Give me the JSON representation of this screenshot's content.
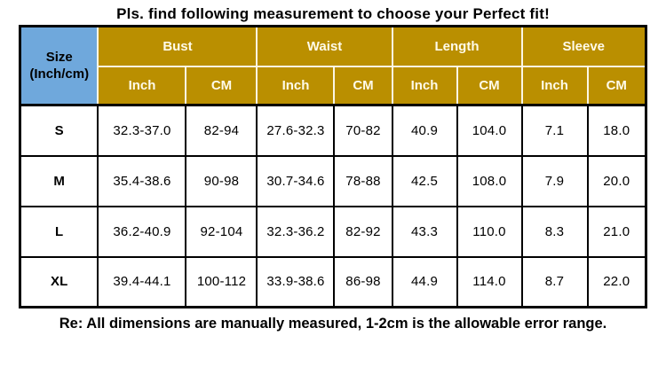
{
  "note": "Re: All dimensions are manually measured, 1-2cm is the allowable error range.",
  "colors": {
    "header_fill": "#BA8F00",
    "header_text": "#FFFBEA",
    "size_fill": "#6FA8DC",
    "body_text": "#000000",
    "grid_border": "#000000",
    "header_separator": "#FCF7E6",
    "background": "#FFFFFF"
  },
  "chart_data": {
    "type": "table",
    "title": "Pls. find following measurement to choose your Perfect fit!",
    "size_header": [
      "Size",
      "(Inch/cm)"
    ],
    "groups": [
      "Bust",
      "Waist",
      "Length",
      "Sleeve"
    ],
    "units": [
      "Inch",
      "CM",
      "Inch",
      "CM",
      "Inch",
      "CM",
      "Inch",
      "CM"
    ],
    "rows": [
      [
        "S",
        "32.3-37.0",
        "82-94",
        "27.6-32.3",
        "70-82",
        "40.9",
        "104.0",
        "7.1",
        "18.0"
      ],
      [
        "M",
        "35.4-38.6",
        "90-98",
        "30.7-34.6",
        "78-88",
        "42.5",
        "108.0",
        "7.9",
        "20.0"
      ],
      [
        "L",
        "36.2-40.9",
        "92-104",
        "32.3-36.2",
        "82-92",
        "43.3",
        "110.0",
        "8.3",
        "21.0"
      ],
      [
        "XL",
        "39.4-44.1",
        "100-112",
        "33.9-38.6",
        "86-98",
        "44.9",
        "114.0",
        "8.7",
        "22.0"
      ]
    ]
  }
}
